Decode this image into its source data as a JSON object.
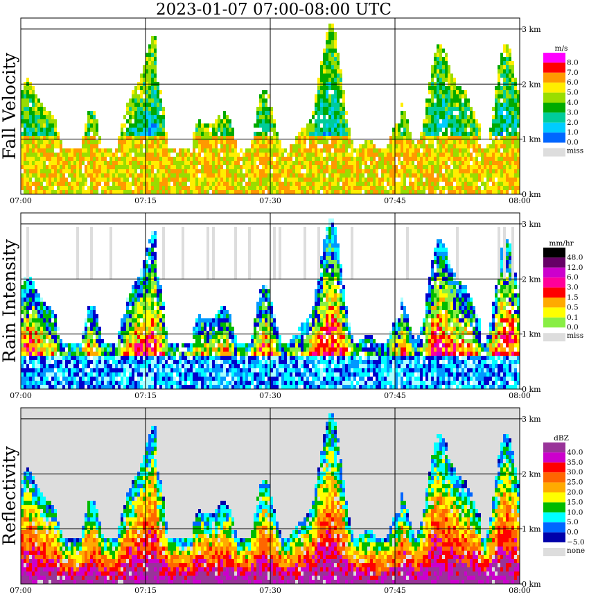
{
  "title": "2023-01-07   07:00-08:00 UTC",
  "colors": {
    "miss": "#dddddd",
    "velocity_scale": [
      "#0000cc",
      "#0066ff",
      "#00ccff",
      "#00cc99",
      "#00aa00",
      "#99dd00",
      "#ffee00",
      "#ff9900",
      "#ff0000",
      "#ff00ff"
    ],
    "rain_scale": [
      "#aaffff",
      "#00ffff",
      "#0099ff",
      "#0000cc",
      "#00bb00",
      "#88ee44",
      "#ffff00",
      "#ffaa00",
      "#ff0000",
      "#ff0099",
      "#cc00cc",
      "#660066",
      "#000000"
    ],
    "refl_scale": [
      "#0000aa",
      "#0066ff",
      "#00ffff",
      "#00bb00",
      "#ffff00",
      "#ffaa00",
      "#ff6600",
      "#ff0000",
      "#cc00cc",
      "#993399"
    ]
  },
  "chart_data": [
    {
      "type": "heatmap",
      "ylabel": "Fall Velocity",
      "unit": "m/s",
      "legend_labels": [
        "8.0",
        "7.0",
        "6.0",
        "5.0",
        "4.0",
        "3.0",
        "2.0",
        "1.0",
        "0.0"
      ],
      "miss_label": "miss",
      "x_ticks": [
        "07:00",
        "07:15",
        "07:30",
        "07:45",
        "08:00"
      ],
      "y_ticks": [
        "0 km",
        "1 km",
        "2 km",
        "3 km"
      ],
      "xlim": [
        "07:00",
        "08:00"
      ],
      "ylim_km": [
        0,
        3.2
      ],
      "grid": true
    },
    {
      "type": "heatmap",
      "ylabel": "Rain Intensity",
      "unit": "mm/hr",
      "legend_labels": [
        "48.0",
        "12.0",
        "6.0",
        "3.0",
        "1.5",
        "0.5",
        "0.1",
        "0.0"
      ],
      "miss_label": "miss",
      "x_ticks": [
        "07:00",
        "07:15",
        "07:30",
        "07:45",
        "08:00"
      ],
      "y_ticks": [
        "0 km",
        "1 km",
        "2 km",
        "3 km"
      ],
      "xlim": [
        "07:00",
        "08:00"
      ],
      "ylim_km": [
        0,
        3.2
      ],
      "grid": true
    },
    {
      "type": "heatmap",
      "ylabel": "Reflectivity",
      "unit": "dBZ",
      "legend_labels": [
        "40.0",
        "35.0",
        "30.0",
        "25.0",
        "20.0",
        "15.0",
        "10.0",
        "5.0",
        "0.0",
        "−5.0"
      ],
      "miss_label": "none",
      "x_ticks": [
        "07:00",
        "07:15",
        "07:30",
        "07:45",
        "08:00"
      ],
      "y_ticks": [
        "0 km",
        "1 km",
        "2 km",
        "3 km"
      ],
      "xlim": [
        "07:00",
        "08:00"
      ],
      "ylim_km": [
        0,
        3.2
      ],
      "grid": true
    }
  ]
}
